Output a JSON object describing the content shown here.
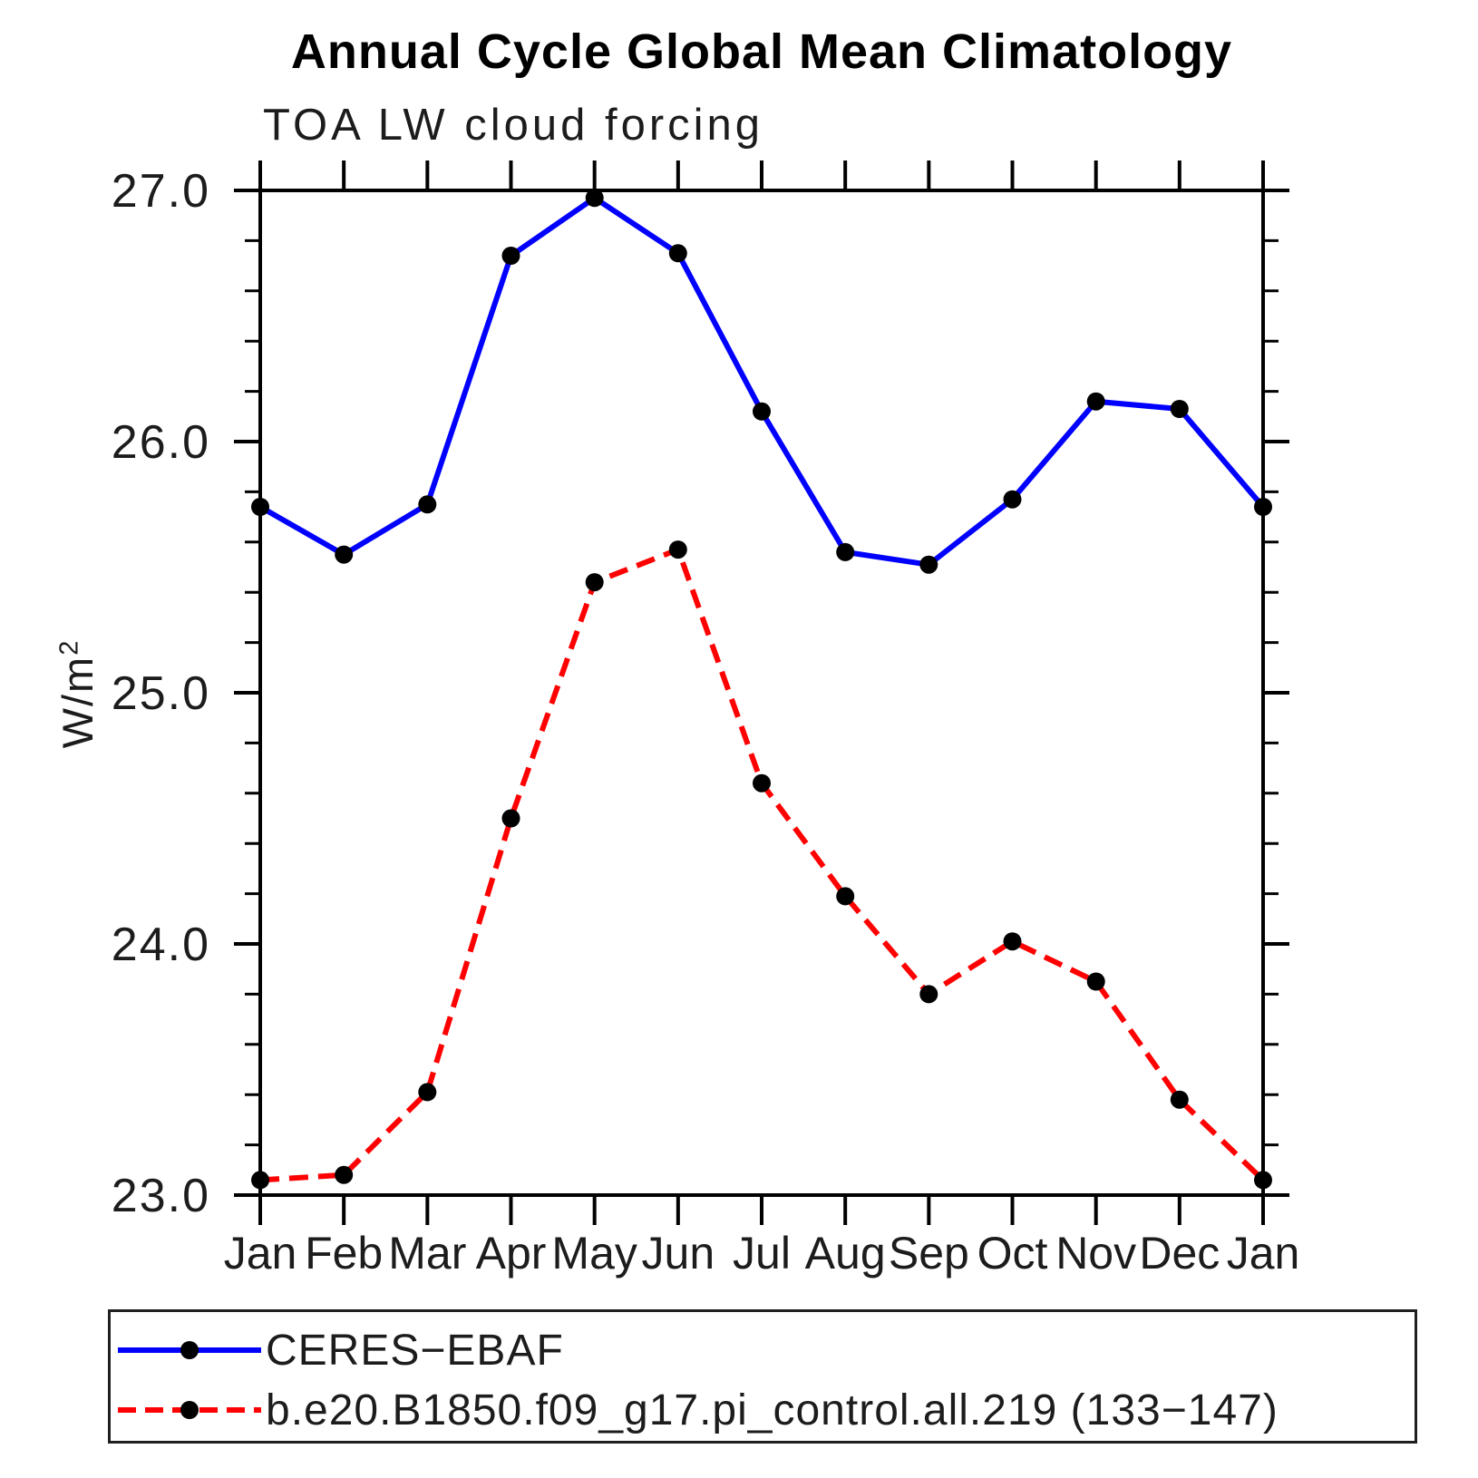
{
  "page": {
    "title": "Annual Cycle Global Mean Climatology",
    "subtitle": "TOA LW cloud forcing"
  },
  "y_axis": {
    "label_base": "W/m",
    "label_sup": "2",
    "tick_labels": [
      "23.0",
      "24.0",
      "25.0",
      "26.0",
      "27.0"
    ]
  },
  "chart_data": {
    "type": "line",
    "title": "Annual Cycle Global Mean Climatology",
    "subtitle": "TOA LW cloud forcing",
    "ylabel": "W/m^2",
    "xlabel": "",
    "categories": [
      "Jan",
      "Feb",
      "Mar",
      "Apr",
      "May",
      "Jun",
      "Jul",
      "Aug",
      "Sep",
      "Oct",
      "Nov",
      "Dec",
      "Jan"
    ],
    "series": [
      {
        "name": "CERES−EBAF",
        "color": "#0000ff",
        "line_style": "solid",
        "marker": "filled-circle",
        "values": [
          25.74,
          25.55,
          25.75,
          26.74,
          26.97,
          26.75,
          26.12,
          25.56,
          25.51,
          25.77,
          26.16,
          26.13,
          25.74
        ]
      },
      {
        "name": "b.e20.B1850.f09_g17.pi_control.all.219 (133−147)",
        "color": "#ff0000",
        "line_style": "dashed",
        "marker": "filled-circle",
        "values": [
          23.06,
          23.08,
          23.41,
          24.5,
          25.44,
          25.57,
          24.64,
          24.19,
          23.8,
          24.01,
          23.85,
          23.38,
          23.06
        ]
      }
    ],
    "ylim": [
      23.0,
      27.0
    ],
    "ytick_major": [
      23.0,
      24.0,
      25.0,
      26.0,
      27.0
    ],
    "ytick_minor_step": 0.2,
    "grid": false,
    "legend_position": "bottom",
    "marker_color": "#000000",
    "axis_color": "#000000"
  }
}
